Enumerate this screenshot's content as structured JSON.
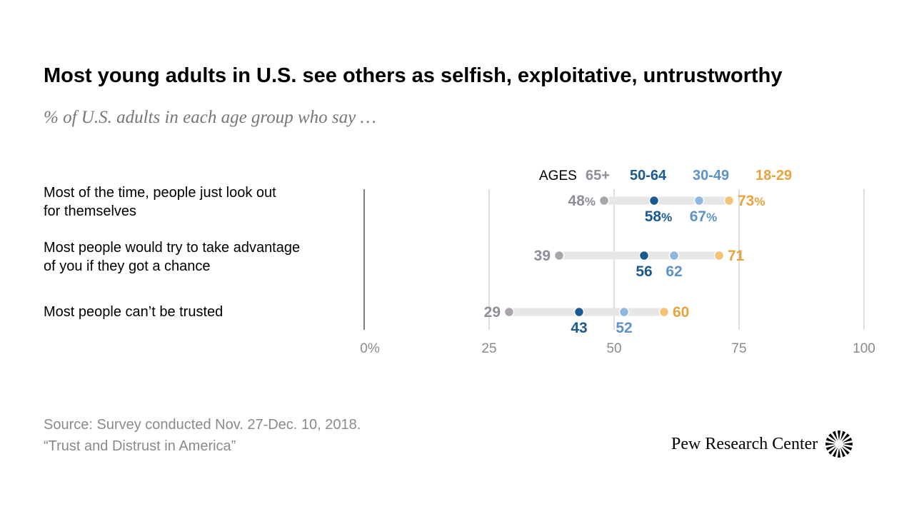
{
  "header": {
    "title": "Most young adults in U.S. see others as selfish, exploitative, untrustworthy",
    "subtitle": "% of U.S. adults in each age group who say …"
  },
  "footer": {
    "source_line1": "Source: Survey conducted Nov. 27-Dec. 10, 2018.",
    "source_line2": "“Trust and Distrust in America”",
    "brand": "Pew Research Center",
    "brand_icon": "pew-sunburst-icon"
  },
  "chart_data": {
    "type": "dot-plot",
    "legend_prefix": "AGES",
    "legend_placement": "top",
    "xlim": [
      0,
      100
    ],
    "ticks": [
      {
        "value": 0,
        "label": "0%"
      },
      {
        "value": 25,
        "label": "25"
      },
      {
        "value": 50,
        "label": "50"
      },
      {
        "value": 75,
        "label": "75"
      },
      {
        "value": 100,
        "label": "100"
      }
    ],
    "grid": true,
    "series": [
      {
        "name": "65+",
        "color": "#918b9b",
        "dot_color": "#a8a3ad",
        "label_position": "left"
      },
      {
        "name": "50-64",
        "color": "#1b5a8e",
        "dot_color": "#1b5a8e",
        "label_position": "below"
      },
      {
        "name": "30-49",
        "color": "#5d92c8",
        "dot_color": "#8fb8e0",
        "label_position": "below"
      },
      {
        "name": "18-29",
        "color": "#e8a33c",
        "dot_color": "#f3c275",
        "label_position": "right"
      }
    ],
    "categories": [
      {
        "label_lines": [
          "Most of the time, people just look out",
          "for themselves"
        ],
        "values": [
          48,
          58,
          67,
          73
        ],
        "value_labels": [
          "48%",
          "58%",
          "67%",
          "73%"
        ]
      },
      {
        "label_lines": [
          "Most people would try to take advantage",
          "of you if they got a chance"
        ],
        "values": [
          39,
          56,
          62,
          71
        ],
        "value_labels": [
          "39",
          "56",
          "62",
          "71"
        ]
      },
      {
        "label_lines": [
          "Most people can’t be trusted"
        ],
        "values": [
          29,
          43,
          52,
          60
        ],
        "value_labels": [
          "29",
          "43",
          "52",
          "60"
        ]
      }
    ],
    "colors": {
      "range_bar": "#e6e6e6",
      "grid": "#bdbdbd",
      "axis": "#555555",
      "tick_label": "#8a8a8a",
      "category_label": "#000000",
      "legend_prefix": "#000000"
    }
  }
}
